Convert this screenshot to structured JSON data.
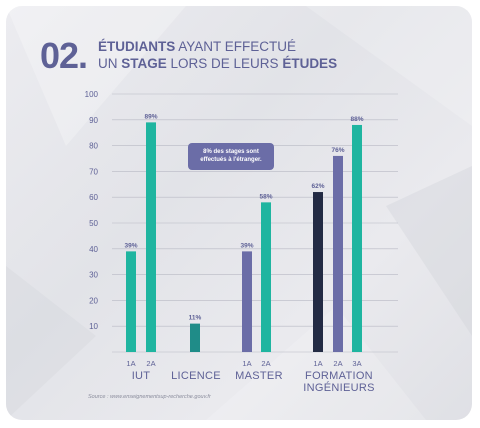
{
  "header": {
    "number": "02.",
    "title_line1_bold": "ÉTUDIANTS",
    "title_line1_rest": " AYANT EFFECTUÉ",
    "title_line2_start": "UN ",
    "title_line2_bold1": "STAGE",
    "title_line2_mid": " LORS DE LEURS ",
    "title_line2_bold2": "ÉTUDES"
  },
  "callout": "8% des stages sont effectués à l'étranger.",
  "source": "Source : www.enseignementsup-recherche.gouv.fr",
  "colors": {
    "teal": "#1fb5a0",
    "dark_teal": "#1f8c88",
    "purple": "#6b6da7",
    "navy": "#232b44",
    "grid": "#b8b9c4",
    "text": "#5e6196"
  },
  "chart_data": {
    "type": "bar",
    "ylim": [
      0,
      100
    ],
    "yticks": [
      10,
      20,
      30,
      40,
      50,
      60,
      70,
      80,
      90,
      100
    ],
    "groups": [
      {
        "name": "IUT",
        "bars": [
          {
            "label": "1A",
            "value": 39,
            "value_label": "39%",
            "color": "#1fb5a0"
          },
          {
            "label": "2A",
            "value": 89,
            "value_label": "89%",
            "color": "#1fb5a0"
          }
        ]
      },
      {
        "name": "LICENCE",
        "bars": [
          {
            "label": "",
            "value": 11,
            "value_label": "11%",
            "color": "#1f8c88"
          }
        ]
      },
      {
        "name": "MASTER",
        "bars": [
          {
            "label": "1A",
            "value": 39,
            "value_label": "39%",
            "color": "#6b6da7"
          },
          {
            "label": "2A",
            "value": 58,
            "value_label": "58%",
            "color": "#1fb5a0"
          }
        ]
      },
      {
        "name": "FORMATION INGÉNIEURS",
        "bars": [
          {
            "label": "1A",
            "value": 62,
            "value_label": "62%",
            "color": "#232b44"
          },
          {
            "label": "2A",
            "value": 76,
            "value_label": "76%",
            "color": "#6b6da7"
          },
          {
            "label": "3A",
            "value": 88,
            "value_label": "88%",
            "color": "#1fb5a0"
          }
        ]
      }
    ]
  }
}
